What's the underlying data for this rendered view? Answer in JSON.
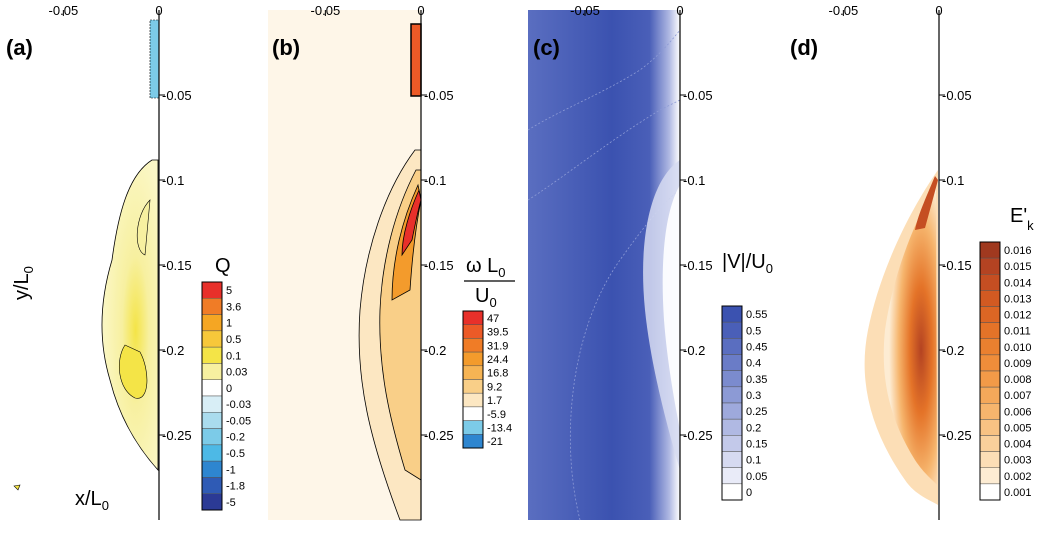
{
  "chart_data": [
    {
      "type": "heatmap",
      "panel_label": "(a)",
      "colorbar_title": "Q",
      "xlabel": "x/L",
      "xlabel_sub": "0",
      "ylabel": "y/L",
      "ylabel_sub": "0",
      "xlim": [
        -0.08,
        0
      ],
      "ylim": [
        -0.3,
        0
      ],
      "xticks": [
        "-0.05",
        "0"
      ],
      "yticks": [
        "-0.05",
        "-0.1",
        "-0.15",
        "-0.2",
        "-0.25"
      ],
      "levels": [
        "5",
        "3.6",
        "1",
        "0.5",
        "0.1",
        "0.03",
        "0",
        "-0.03",
        "-0.05",
        "-0.2",
        "-0.5",
        "-1",
        "-1.8",
        "-5"
      ],
      "colors": [
        "#e8302a",
        "#f07c26",
        "#f5a623",
        "#f7c83a",
        "#f4e447",
        "#f7f0a0",
        "#ffffff",
        "#d8eef6",
        "#aadcee",
        "#7ccbe8",
        "#4db9e6",
        "#2e86d0",
        "#2f5bb5",
        "#2b3a95"
      ]
    },
    {
      "type": "heatmap",
      "panel_label": "(b)",
      "colorbar_title": "ω L",
      "colorbar_title_sub": "0",
      "colorbar_title_den": "U",
      "colorbar_title_den_sub": "0",
      "xlim": [
        -0.08,
        0
      ],
      "ylim": [
        -0.3,
        0
      ],
      "xticks": [
        "-0.05",
        "0"
      ],
      "yticks": [
        "-0.05",
        "-0.1",
        "-0.15",
        "-0.2",
        "-0.25"
      ],
      "levels": [
        "47",
        "39.5",
        "31.9",
        "24.4",
        "16.8",
        "9.2",
        "1.7",
        "-5.9",
        "-13.4",
        "-21"
      ],
      "colors": [
        "#e8302a",
        "#ec5a27",
        "#f07c26",
        "#f39b2c",
        "#f6b454",
        "#f9cf88",
        "#fce7c2",
        "#ffffff",
        "#7ccbe8",
        "#2e86d0",
        "#2b3a95"
      ]
    },
    {
      "type": "heatmap",
      "panel_label": "(c)",
      "colorbar_title": "|V|/U",
      "colorbar_title_sub": "0",
      "xlim": [
        -0.08,
        0
      ],
      "ylim": [
        -0.3,
        0
      ],
      "xticks": [
        "-0.05",
        "0"
      ],
      "yticks": [
        "-0.05",
        "-0.1",
        "-0.15",
        "-0.2",
        "-0.25"
      ],
      "levels": [
        "0.55",
        "0.5",
        "0.45",
        "0.4",
        "0.35",
        "0.3",
        "0.25",
        "0.2",
        "0.15",
        "0.1",
        "0.05",
        "0"
      ],
      "colors": [
        "#3b52b0",
        "#4a5fb8",
        "#5a6ec0",
        "#6a7cc7",
        "#7b8bce",
        "#8c9ad5",
        "#9ea9dc",
        "#b0b9e3",
        "#c3c9ea",
        "#d6daf1",
        "#e9ebf8",
        "#ffffff"
      ]
    },
    {
      "type": "heatmap",
      "panel_label": "(d)",
      "colorbar_title": "E'",
      "colorbar_title_sub": "k",
      "xlim": [
        -0.08,
        0
      ],
      "ylim": [
        -0.3,
        0
      ],
      "xticks": [
        "-0.05",
        "0"
      ],
      "yticks": [
        "-0.05",
        "-0.1",
        "-0.15",
        "-0.2",
        "-0.25"
      ],
      "levels": [
        "0.016",
        "0.015",
        "0.014",
        "0.013",
        "0.012",
        "0.011",
        "0.010",
        "0.009",
        "0.008",
        "0.007",
        "0.006",
        "0.005",
        "0.004",
        "0.003",
        "0.002",
        "0.001"
      ],
      "colors": [
        "#a0391f",
        "#b44322",
        "#c54e22",
        "#d25a22",
        "#dc6624",
        "#e47328",
        "#ea802f",
        "#ef8d3a",
        "#f29a48",
        "#f4a85a",
        "#f6b56d",
        "#f8c283",
        "#fad09b",
        "#fcdeb6",
        "#fdecd3",
        "#ffffff"
      ]
    }
  ]
}
